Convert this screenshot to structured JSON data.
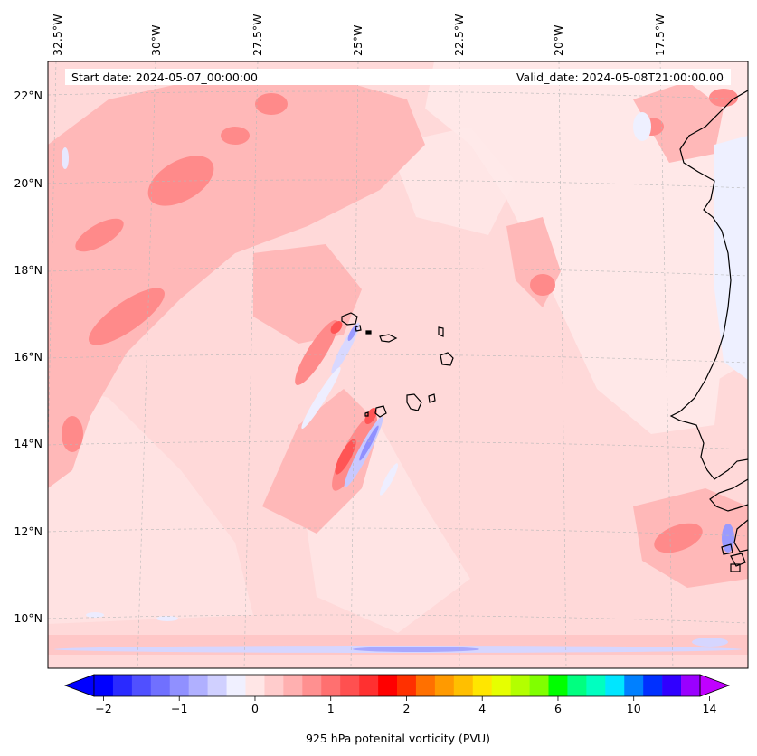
{
  "map": {
    "start_date_label": "Start date: 2024-05-07_00:00:00",
    "valid_date_label": "Valid_date: 2024-05-08T21:00:00.00",
    "lon_labels": [
      "32.5°W",
      "30°W",
      "27.5°W",
      "25°W",
      "22.5°W",
      "20°W",
      "17.5°W"
    ],
    "lat_labels": [
      "22°N",
      "20°N",
      "18°N",
      "16°N",
      "14°N",
      "12°N",
      "10°N"
    ],
    "field": "925 hPa potenital vorticity",
    "colors": {
      "background_field": "#ffd9d9",
      "weak_positive": "#ffb3b3",
      "moderate_positive": "#ff8080",
      "strong_positive": "#ff4d4d",
      "weak_negative": "#e6e6ff",
      "moderate_negative": "#b3b3ff",
      "strong_negative": "#8080ff",
      "coastline": "#000000"
    }
  },
  "colorbar": {
    "label": "925 hPa potenital vorticity (PVU)",
    "tick_labels": [
      "−2",
      "−1",
      "0",
      "1",
      "2",
      "4",
      "6",
      "10",
      "14"
    ],
    "colors": [
      "#0000ff",
      "#2a2aff",
      "#5050ff",
      "#7070ff",
      "#9090ff",
      "#b0b0ff",
      "#d0d0ff",
      "#f0f0ff",
      "#ffe6e6",
      "#ffcccc",
      "#ffb0b0",
      "#ff9090",
      "#ff7070",
      "#ff5050",
      "#ff3030",
      "#ff0000",
      "#ff3000",
      "#ff7000",
      "#ff9a00",
      "#ffbf00",
      "#ffe600",
      "#e6ff00",
      "#b3ff00",
      "#80ff00",
      "#00ff00",
      "#00ff80",
      "#00ffc0",
      "#00e6ff",
      "#0080ff",
      "#0030ff",
      "#3000ff",
      "#9a00ff"
    ],
    "extend_min_color": "#0000ff",
    "extend_max_color": "#c000ff"
  }
}
